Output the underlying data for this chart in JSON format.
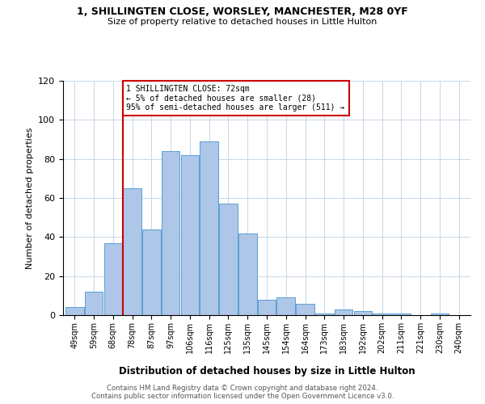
{
  "title1": "1, SHILLINGTEN CLOSE, WORSLEY, MANCHESTER, M28 0YF",
  "title2": "Size of property relative to detached houses in Little Hulton",
  "xlabel": "Distribution of detached houses by size in Little Hulton",
  "ylabel": "Number of detached properties",
  "footer1": "Contains HM Land Registry data © Crown copyright and database right 2024.",
  "footer2": "Contains public sector information licensed under the Open Government Licence v3.0.",
  "annotation_line1": "1 SHILLINGTEN CLOSE: 72sqm",
  "annotation_line2": "← 5% of detached houses are smaller (28)",
  "annotation_line3": "95% of semi-detached houses are larger (511) →",
  "bar_labels": [
    "49sqm",
    "59sqm",
    "68sqm",
    "78sqm",
    "87sqm",
    "97sqm",
    "106sqm",
    "116sqm",
    "125sqm",
    "135sqm",
    "145sqm",
    "154sqm",
    "164sqm",
    "173sqm",
    "183sqm",
    "192sqm",
    "202sqm",
    "211sqm",
    "221sqm",
    "230sqm",
    "240sqm"
  ],
  "bar_values": [
    4,
    12,
    37,
    65,
    44,
    84,
    82,
    89,
    57,
    42,
    8,
    9,
    6,
    1,
    3,
    2,
    1,
    1,
    0,
    1,
    0
  ],
  "bar_color": "#aec6e8",
  "bar_edge_color": "#5a9fd4",
  "vline_x_index": 2.5,
  "ylim": [
    0,
    120
  ],
  "yticks": [
    0,
    20,
    40,
    60,
    80,
    100,
    120
  ],
  "annotation_box_color": "#ffffff",
  "annotation_box_edge": "#cc0000",
  "vline_color": "#cc0000",
  "background_color": "#ffffff",
  "grid_color": "#c8d8e8"
}
